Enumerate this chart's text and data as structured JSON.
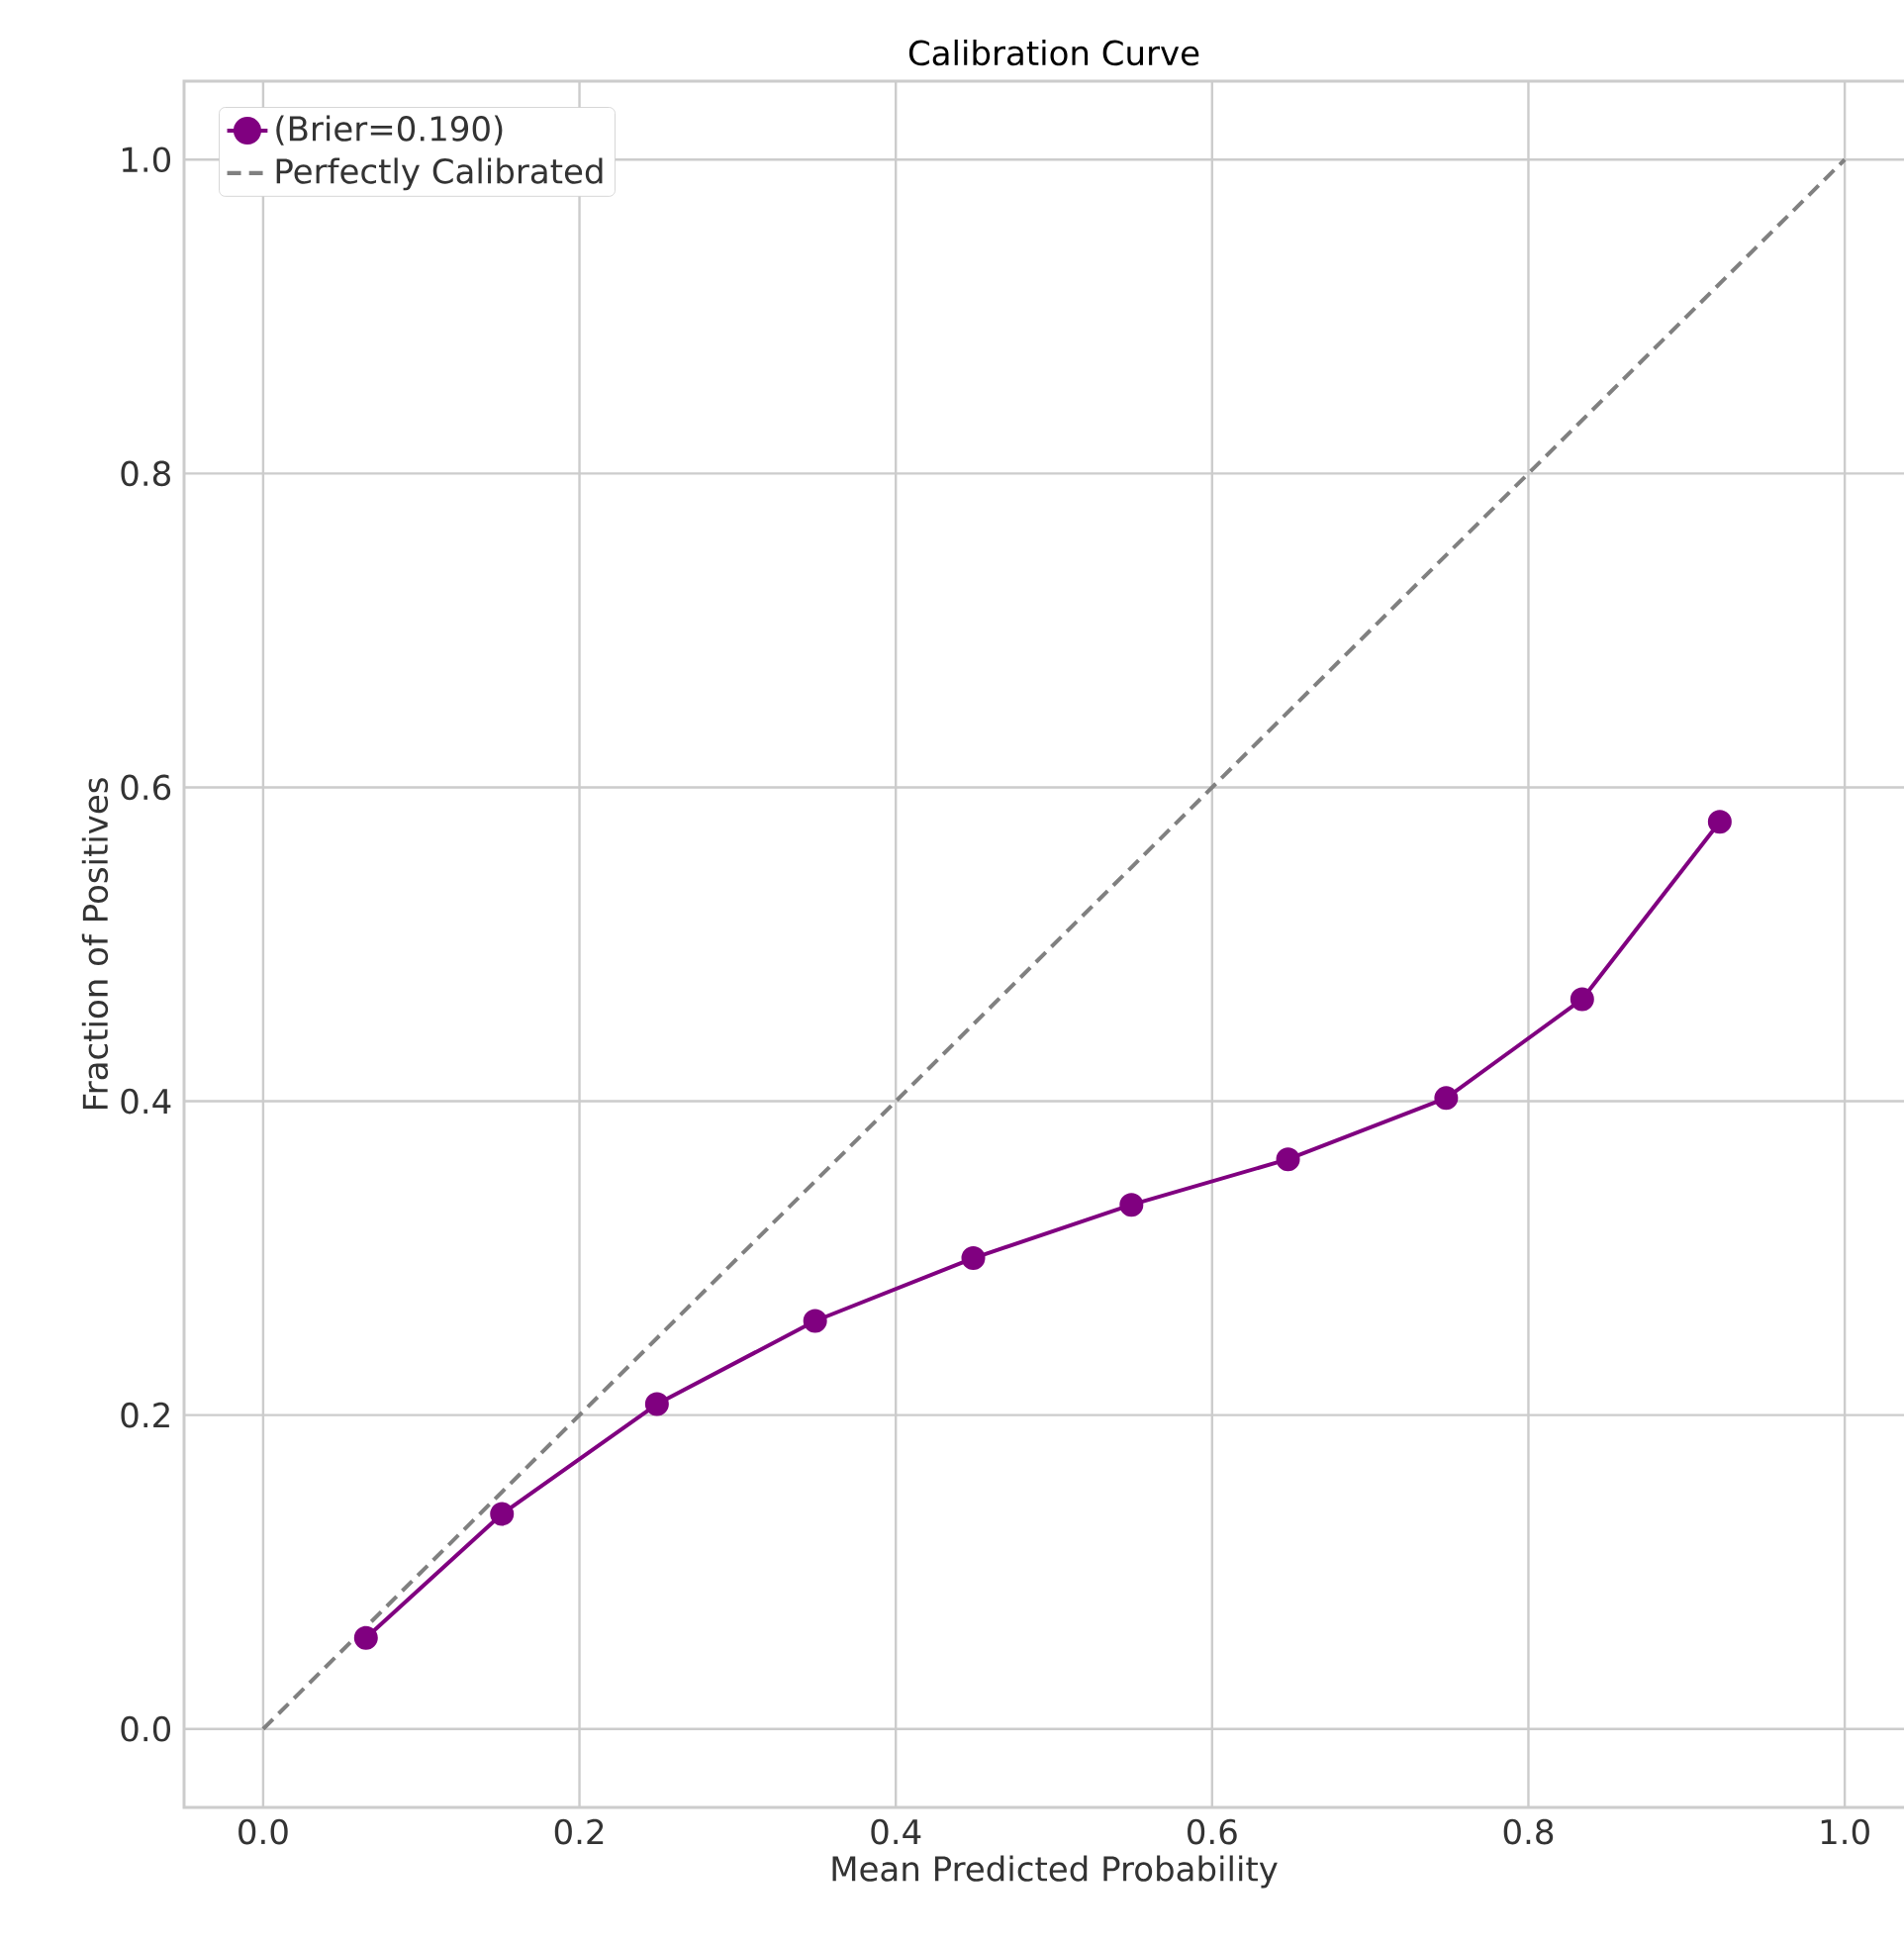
{
  "chart_data": {
    "type": "line",
    "title": "Calibration Curve",
    "xlabel": "Mean Predicted Probability",
    "ylabel": "Fraction of Positives",
    "series": [
      {
        "name": "(Brier=0.190)",
        "color": "#800080",
        "marker": "circle",
        "line_style": "solid",
        "x": [
          0.065,
          0.151,
          0.249,
          0.349,
          0.449,
          0.549,
          0.648,
          0.748,
          0.834,
          0.921
        ],
        "values": [
          0.058,
          0.137,
          0.207,
          0.26,
          0.3,
          0.334,
          0.363,
          0.402,
          0.465,
          0.578
        ]
      },
      {
        "name": "Perfectly Calibrated",
        "color": "#808080",
        "marker": "none",
        "line_style": "dashed",
        "x": [
          0.0,
          1.0
        ],
        "values": [
          0.0,
          1.0
        ]
      }
    ],
    "xlim": [
      -0.05,
      1.05
    ],
    "ylim": [
      -0.05,
      1.05
    ],
    "xticks": [
      {
        "value": 0,
        "label": "0.0"
      },
      0.2,
      0.4,
      0.6,
      0.8,
      {
        "value": 1,
        "label": "1.0"
      }
    ],
    "yticks": [
      {
        "value": 0,
        "label": "0.0"
      },
      0.2,
      0.4,
      0.6,
      0.8,
      {
        "value": 1,
        "label": "1.0"
      }
    ],
    "grid": true,
    "legend": "top left"
  }
}
